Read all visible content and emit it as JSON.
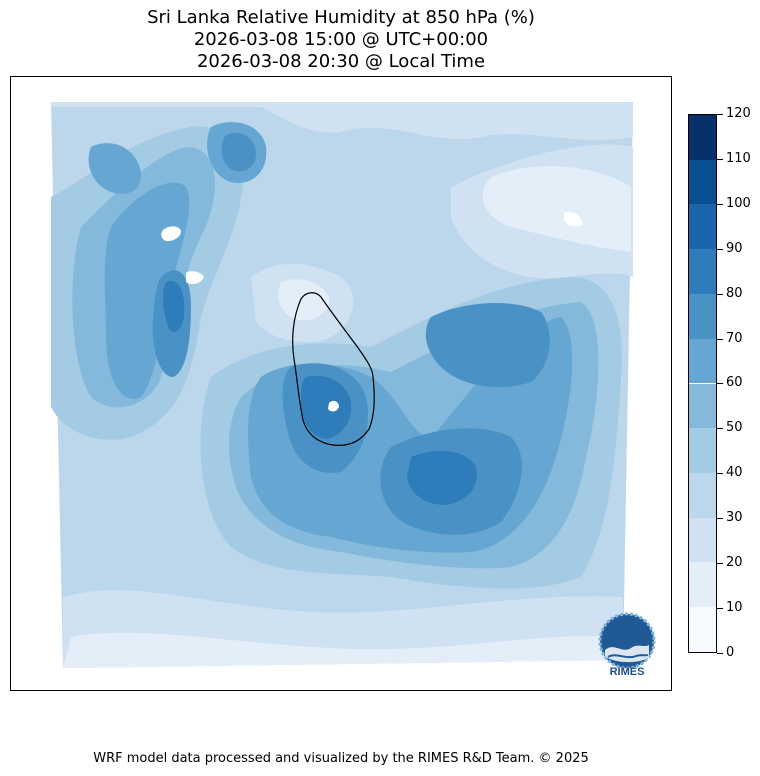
{
  "title": {
    "line1": "Sri Lanka Relative Humidity at 850 hPa (%)",
    "line2": "2026-03-08 15:00 @ UTC+00:00",
    "line3": "2026-03-08 20:30 @ Local Time"
  },
  "colorbar": {
    "min": 0,
    "max": 120,
    "ticks": [
      "0",
      "10",
      "20",
      "30",
      "40",
      "50",
      "60",
      "70",
      "80",
      "90",
      "100",
      "110",
      "120"
    ],
    "colors": [
      "#f7fbff",
      "#e3eef9",
      "#d0e1f2",
      "#bcd6ec",
      "#a3cbe3",
      "#85b9dc",
      "#66a6d2",
      "#4a91c5",
      "#2f7cbb",
      "#1d65ab",
      "#0b4f93",
      "#08306b"
    ]
  },
  "map": {
    "region": "Sri Lanka",
    "variable": "Relative Humidity 850 hPa",
    "units": "%"
  },
  "logo": {
    "text": "RIMES"
  },
  "footer": "WRF model data processed and visualized by the RIMES R&D Team. © 2025"
}
